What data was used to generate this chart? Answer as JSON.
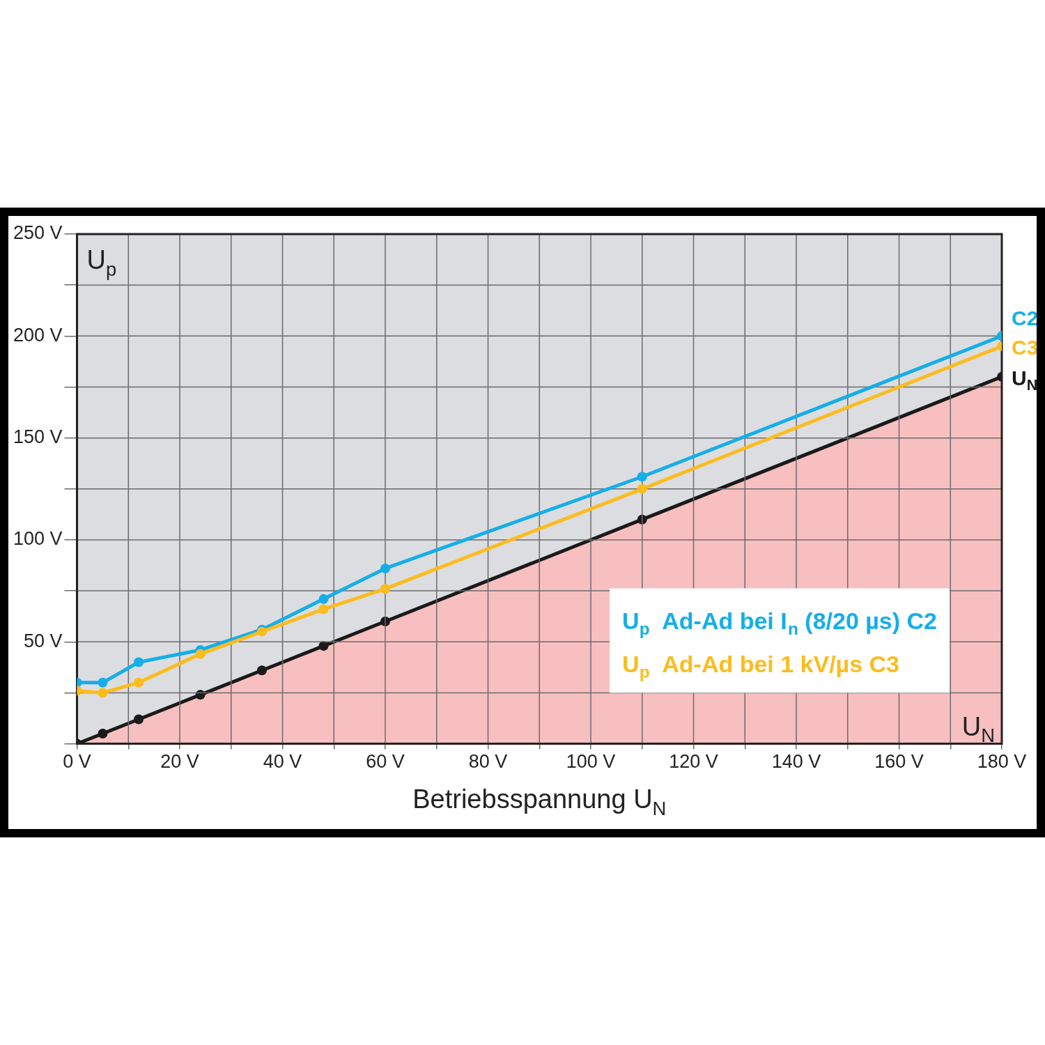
{
  "chart_data": {
    "type": "line",
    "ylabel": "U$_{p}$",
    "xlabel": "Betriebsspannung U$_{N}$",
    "xlim": [
      0,
      180
    ],
    "xticks": [
      {
        "value": 0,
        "label": "0 V"
      },
      {
        "value": 10,
        "label": null
      },
      {
        "value": 20,
        "label": "20 V"
      },
      {
        "value": 30,
        "label": null
      },
      {
        "value": 40,
        "label": "40 V"
      },
      {
        "value": 50,
        "label": null
      },
      {
        "value": 60,
        "label": "60 V"
      },
      {
        "value": 70,
        "label": null
      },
      {
        "value": 80,
        "label": "80 V"
      },
      {
        "value": 90,
        "label": null
      },
      {
        "value": 100,
        "label": "100 V"
      },
      {
        "value": 110,
        "label": null
      },
      {
        "value": 120,
        "label": "120 V"
      },
      {
        "value": 130,
        "label": null
      },
      {
        "value": 140,
        "label": "140 V"
      },
      {
        "value": 150,
        "label": null
      },
      {
        "value": 160,
        "label": "160 V"
      },
      {
        "value": 170,
        "label": null
      },
      {
        "value": 180,
        "label": "180 V"
      }
    ],
    "ylim": [
      0,
      250
    ],
    "yticks": [
      {
        "value": 0,
        "label": null
      },
      {
        "value": 25,
        "label": null
      },
      {
        "value": 50,
        "label": "50 V"
      },
      {
        "value": 75,
        "label": null
      },
      {
        "value": 100,
        "label": "100 V"
      },
      {
        "value": 125,
        "label": null
      },
      {
        "value": 150,
        "label": "150 V"
      },
      {
        "value": 175,
        "label": null
      },
      {
        "value": 200,
        "label": "200 V"
      },
      {
        "value": 225,
        "label": null
      },
      {
        "value": 250,
        "label": "250 V"
      }
    ],
    "grid": true,
    "legend": "bottom right",
    "marker": "circle",
    "line_style": "solid",
    "series": [
      {
        "name": "U$_{p}$  Ad-Ad bei I$_{n}$ (8/20 µs) C2",
        "color": "#16aee8",
        "x": [
          0,
          5,
          12,
          24,
          36,
          48,
          60,
          110,
          180
        ],
        "values": [
          30,
          30,
          40,
          46,
          56,
          71,
          86,
          131,
          200
        ]
      },
      {
        "name": "U$_{p}$  Ad-Ad bei 1 kV/µs C3",
        "color": "#fbbc1e",
        "x": [
          0,
          5,
          12,
          24,
          36,
          48,
          60,
          110,
          180
        ],
        "values": [
          26,
          25,
          30,
          44,
          55,
          66,
          76,
          125,
          195
        ]
      },
      {
        "type": "area",
        "name": "U$_{N}$",
        "color": "#1a1a1a",
        "x": [
          0,
          5,
          12,
          24,
          36,
          48,
          60,
          110,
          180
        ],
        "values": [
          0,
          5,
          12,
          24,
          36,
          48,
          60,
          110,
          180
        ]
      }
    ],
    "annotations": [
      {
        "text": "C2",
        "x": 180,
        "y": 200
      },
      {
        "text": "C3",
        "x": 180,
        "y": 195
      },
      "U$_{N}$"
    ]
  }
}
